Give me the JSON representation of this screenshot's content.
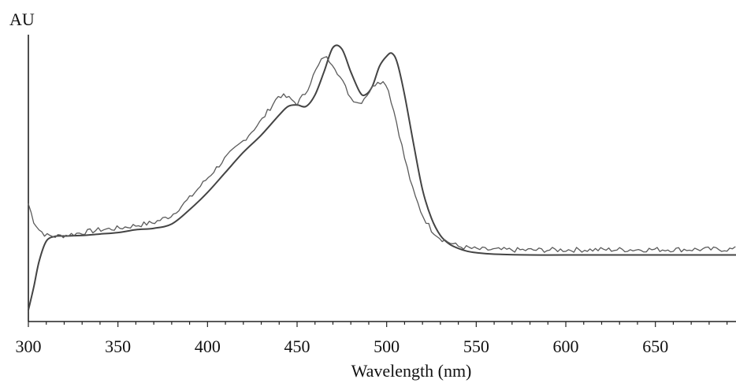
{
  "chart_data": {
    "type": "line",
    "title": "",
    "xlabel": "Wavelength (nm)",
    "ylabel": "AU",
    "xlim": [
      300,
      695
    ],
    "ylim": [
      0,
      1
    ],
    "grid": false,
    "legend": "none",
    "x_ticks": [
      300,
      350,
      400,
      450,
      500,
      550,
      600,
      650
    ],
    "x_tick_labels": [
      "300",
      "350",
      "400",
      "450",
      "500",
      "550",
      "600",
      "650"
    ],
    "series": [
      {
        "color": "#444444",
        "noisy": false,
        "x": [
          300,
          303,
          306,
          310,
          315,
          320,
          330,
          340,
          350,
          360,
          370,
          380,
          390,
          400,
          410,
          420,
          430,
          440,
          445,
          450,
          455,
          460,
          465,
          470,
          475,
          480,
          485,
          488,
          492,
          496,
          500,
          503,
          506,
          510,
          515,
          520,
          525,
          530,
          535,
          540,
          545,
          550,
          560,
          580,
          600,
          650,
          695
        ],
        "y": [
          0.04,
          0.12,
          0.21,
          0.28,
          0.297,
          0.298,
          0.3,
          0.305,
          0.31,
          0.32,
          0.325,
          0.34,
          0.39,
          0.45,
          0.52,
          0.59,
          0.65,
          0.72,
          0.75,
          0.755,
          0.75,
          0.79,
          0.87,
          0.955,
          0.95,
          0.87,
          0.8,
          0.79,
          0.82,
          0.89,
          0.925,
          0.935,
          0.9,
          0.79,
          0.62,
          0.46,
          0.36,
          0.3,
          0.27,
          0.255,
          0.245,
          0.24,
          0.235,
          0.232,
          0.232,
          0.232,
          0.232
        ]
      },
      {
        "color": "#5a5a5a",
        "noisy": true,
        "x": [
          300,
          303,
          306,
          310,
          315,
          320,
          330,
          340,
          350,
          360,
          370,
          380,
          390,
          400,
          410,
          420,
          430,
          440,
          445,
          450,
          455,
          460,
          465,
          470,
          475,
          480,
          485,
          490,
          495,
          500,
          505,
          510,
          515,
          520,
          525,
          530,
          540,
          550,
          560,
          580,
          600,
          650,
          695
        ],
        "y": [
          0.41,
          0.35,
          0.32,
          0.3,
          0.297,
          0.3,
          0.31,
          0.32,
          0.325,
          0.335,
          0.345,
          0.37,
          0.43,
          0.5,
          0.57,
          0.63,
          0.7,
          0.79,
          0.78,
          0.76,
          0.8,
          0.87,
          0.925,
          0.9,
          0.84,
          0.78,
          0.76,
          0.8,
          0.84,
          0.83,
          0.71,
          0.57,
          0.45,
          0.37,
          0.32,
          0.29,
          0.262,
          0.252,
          0.25,
          0.249,
          0.25,
          0.251,
          0.252
        ]
      }
    ]
  }
}
